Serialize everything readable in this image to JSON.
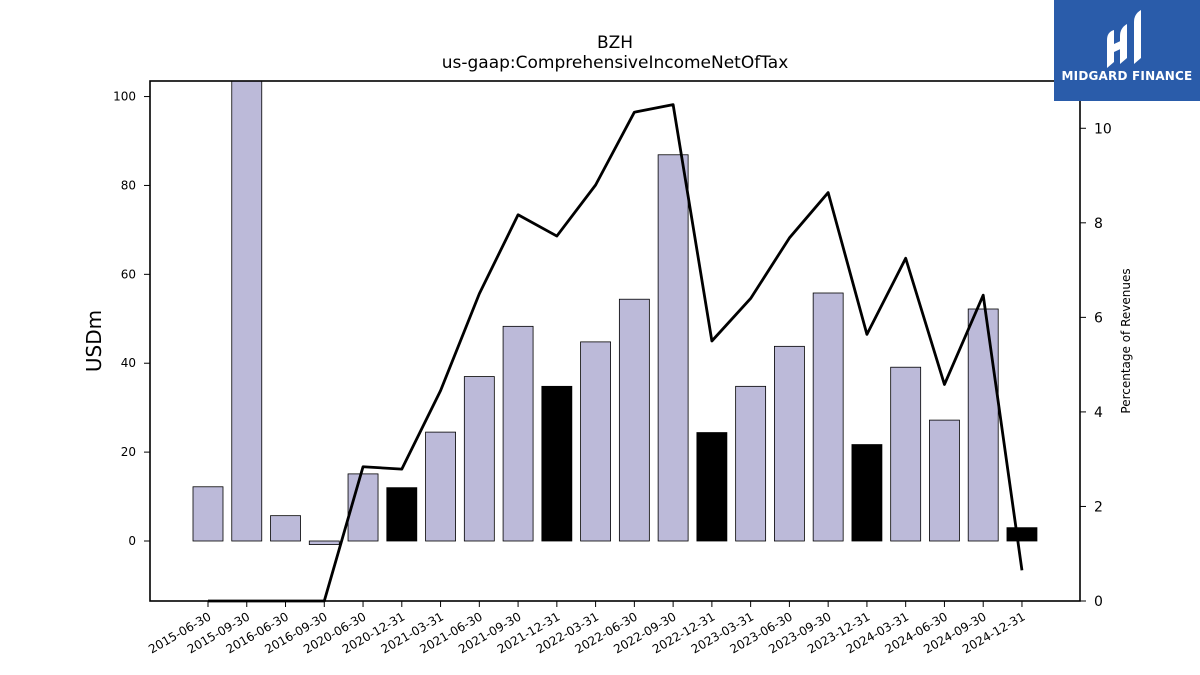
{
  "chart_data": {
    "type": "bar",
    "title": "BZH",
    "subtitle": "us-gaap:ComprehensiveIncomeNetOfTax",
    "ylabel": "USDm",
    "y2label": "Percentage of Revenues",
    "categories": [
      "2015-06-30",
      "2015-09-30",
      "2016-06-30",
      "2016-09-30",
      "2020-06-30",
      "2020-12-31",
      "2021-03-31",
      "2021-06-30",
      "2021-09-30",
      "2021-12-31",
      "2022-03-31",
      "2022-06-30",
      "2022-09-30",
      "2022-12-31",
      "2023-03-31",
      "2023-06-30",
      "2023-09-30",
      "2023-12-31",
      "2024-03-31",
      "2024-06-30",
      "2024-09-30",
      "2024-12-31"
    ],
    "series": [
      {
        "type": "bar",
        "axis": "left",
        "values": [
          12.2,
          112,
          5.7,
          -0.8,
          15.1,
          12.0,
          24.5,
          37.0,
          48.3,
          34.8,
          44.8,
          54.4,
          86.9,
          24.4,
          34.8,
          43.8,
          55.8,
          21.7,
          39.1,
          27.2,
          52.2,
          3.0
        ],
        "colors": [
          "#bcbad9",
          "#bcbad9",
          "#bcbad9",
          "#bcbad9",
          "#bcbad9",
          "#000000",
          "#bcbad9",
          "#bcbad9",
          "#bcbad9",
          "#000000",
          "#bcbad9",
          "#bcbad9",
          "#bcbad9",
          "#000000",
          "#bcbad9",
          "#bcbad9",
          "#bcbad9",
          "#000000",
          "#bcbad9",
          "#bcbad9",
          "#bcbad9",
          "#000000"
        ]
      },
      {
        "type": "line",
        "axis": "right",
        "color": "#000000",
        "values": [
          0.0,
          0.0,
          0.0,
          0.0,
          2.84,
          2.79,
          4.45,
          6.5,
          8.17,
          7.72,
          8.8,
          10.34,
          10.5,
          5.5,
          6.4,
          7.68,
          8.64,
          5.64,
          7.25,
          4.58,
          6.47,
          0.65
        ]
      }
    ],
    "ylim": [
      -13.5,
      103.5
    ],
    "y2lim": [
      0,
      11
    ],
    "yticks": [
      0,
      20,
      40,
      60,
      80,
      100
    ],
    "y2ticks": [
      0,
      2,
      4,
      6,
      8,
      10
    ],
    "grid": false
  },
  "logo": {
    "text": "MIDGARD FINANCE",
    "bg_color": "#2a5caa"
  }
}
